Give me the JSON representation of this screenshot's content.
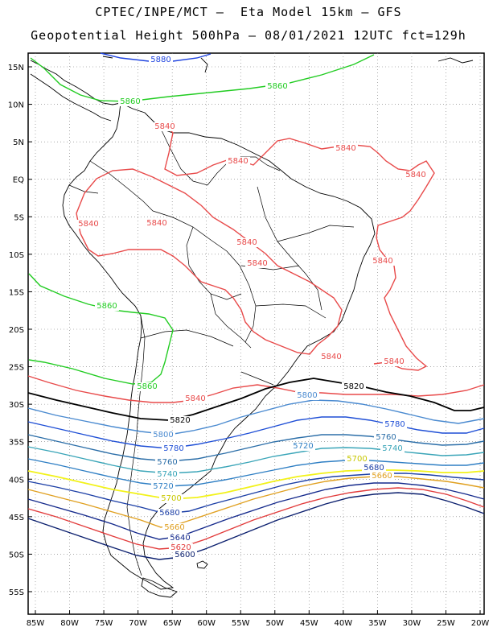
{
  "header": {
    "line1": "CPTEC/INPE/MCT –  Eta Model 15km – GFS",
    "line2": "Geopotential Height 500hPa – 08/01/2021 12UTC fct=129h"
  },
  "map": {
    "lat_labels": [
      "15N",
      "10N",
      "5N",
      "EQ",
      "5S",
      "10S",
      "15S",
      "20S",
      "25S",
      "30S",
      "35S",
      "40S",
      "45S",
      "50S",
      "55S"
    ],
    "lon_labels": [
      "85W",
      "80W",
      "75W",
      "70W",
      "65W",
      "60W",
      "55W",
      "50W",
      "45W",
      "40W",
      "35W",
      "30W",
      "25W",
      "20W"
    ],
    "contour_colors": {
      "5600": "#0b1f6e",
      "5620": "#e23c3c",
      "5640": "#152a8c",
      "5660": "#e0a020",
      "5680": "#1c3fa6",
      "5700": "#f2f21a",
      "5720": "#2f7fc4",
      "5740": "#3aa5b8",
      "5760": "#2b6ea8",
      "5780": "#1f4fd6",
      "5800": "#4a8ad0",
      "5820": "#000000",
      "5840": "#e84a4a",
      "5860": "#22cc22",
      "5880": "#2045e0"
    },
    "contour_labels": [
      {
        "text": "5880"
      },
      {
        "text": "5860"
      },
      {
        "text": "5860"
      },
      {
        "text": "5860"
      },
      {
        "text": "5860"
      },
      {
        "text": "5840"
      },
      {
        "text": "5840"
      },
      {
        "text": "5840"
      },
      {
        "text": "5840"
      },
      {
        "text": "5840"
      },
      {
        "text": "5840"
      },
      {
        "text": "5840"
      },
      {
        "text": "5840"
      },
      {
        "text": "5840"
      },
      {
        "text": "5840"
      },
      {
        "text": "5840"
      },
      {
        "text": "5840"
      },
      {
        "text": "5820"
      },
      {
        "text": "5820"
      },
      {
        "text": "5800"
      },
      {
        "text": "5800"
      },
      {
        "text": "5780"
      },
      {
        "text": "5780"
      },
      {
        "text": "5760"
      },
      {
        "text": "5760"
      },
      {
        "text": "5740"
      },
      {
        "text": "5740"
      },
      {
        "text": "5720"
      },
      {
        "text": "5720"
      },
      {
        "text": "5700"
      },
      {
        "text": "5700"
      },
      {
        "text": "5680"
      },
      {
        "text": "5680"
      },
      {
        "text": "5660"
      },
      {
        "text": "5660"
      },
      {
        "text": "5640"
      },
      {
        "text": "5620"
      },
      {
        "text": "5600"
      }
    ]
  }
}
